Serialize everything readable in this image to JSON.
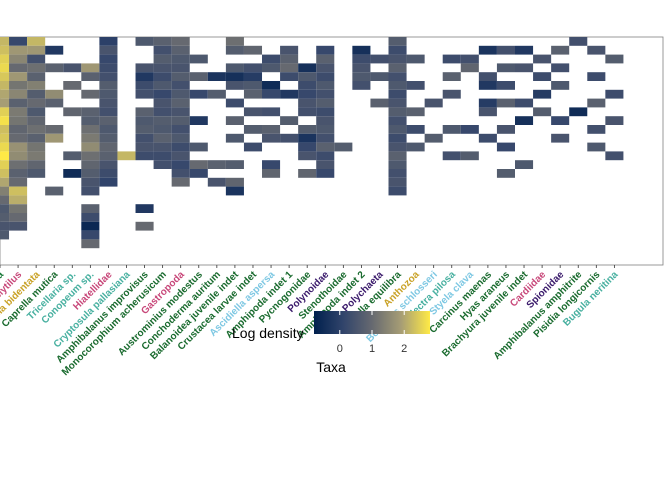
{
  "chart_data": {
    "type": "heatmap",
    "title": "",
    "xlabel": "Taxa",
    "ylabel": "",
    "legend": {
      "title": "Log density",
      "ticks": [
        0,
        1,
        2
      ],
      "range": [
        -0.8,
        2.8
      ],
      "colormap": "cividis",
      "placement": "bottom"
    },
    "grid": false,
    "rows": 26,
    "taxa": [
      {
        "name": "...ata",
        "color": "#1a7a3a"
      },
      {
        "name": "Mytilus",
        "color": "#c8487a"
      },
      {
        "name": "...lia bidentata",
        "color": "#c9a227"
      },
      {
        "name": "Caprella mutica",
        "color": "#1a6b2f"
      },
      {
        "name": "Tricellaria sp.",
        "color": "#48b0a0"
      },
      {
        "name": "Conopeum sp.",
        "color": "#48b0a0"
      },
      {
        "name": "Hiatellidae",
        "color": "#c8487a"
      },
      {
        "name": "Cryptosula pallasiana",
        "color": "#48b0a0"
      },
      {
        "name": "Amphibalanus improvisus",
        "color": "#1a6b2f"
      },
      {
        "name": "Monocorophium acherusicum",
        "color": "#1a6b2f"
      },
      {
        "name": "Gastropoda",
        "color": "#c8487a"
      },
      {
        "name": "Austrominius modestus",
        "color": "#1a6b2f"
      },
      {
        "name": "Conchoderma auritum",
        "color": "#1a6b2f"
      },
      {
        "name": "Balanoidea juvenile indet",
        "color": "#1a6b2f"
      },
      {
        "name": "Crustacea larvae indet",
        "color": "#1a6b2f"
      },
      {
        "name": "Ascidiella aspersa",
        "color": "#7ec8e3"
      },
      {
        "name": "Amphipoda indet 1",
        "color": "#1a6b2f"
      },
      {
        "name": "Pycnogonidae",
        "color": "#1a6b2f"
      },
      {
        "name": "Polynoidae",
        "color": "#3a1a6b"
      },
      {
        "name": "Stenothoidae",
        "color": "#1a6b2f"
      },
      {
        "name": "Amphipoda indet 2",
        "color": "#1a6b2f"
      },
      {
        "name": "Polychaeta",
        "color": "#3a1a6b"
      },
      {
        "name": "Caprella equilibra",
        "color": "#1a6b2f"
      },
      {
        "name": "Anthozoa",
        "color": "#c9a227"
      },
      {
        "name": "Botryllus schlosseri",
        "color": "#7ec8e3"
      },
      {
        "name": "Electra pilosa",
        "color": "#48b0a0"
      },
      {
        "name": "Styela clava",
        "color": "#7ec8e3"
      },
      {
        "name": "Carcinus maenas",
        "color": "#1a6b2f"
      },
      {
        "name": "Hyas araneus",
        "color": "#1a6b2f"
      },
      {
        "name": "Brachyura juvenile indet",
        "color": "#1a6b2f"
      },
      {
        "name": "Cardiidae",
        "color": "#c8487a"
      },
      {
        "name": "Spionidae",
        "color": "#3a1a6b"
      },
      {
        "name": "Amphibalanus amphitrite",
        "color": "#1a6b2f"
      },
      {
        "name": "Pisidia longicornis",
        "color": "#1a6b2f"
      },
      {
        "name": "Bugula neritina",
        "color": "#48b0a0"
      }
    ],
    "cells": [
      [
        0,
        0,
        2.2
      ],
      [
        0,
        1,
        2.3
      ],
      [
        0,
        2,
        2.5
      ],
      [
        0,
        3,
        2.6
      ],
      [
        0,
        4,
        2.4
      ],
      [
        0,
        5,
        2.2
      ],
      [
        0,
        6,
        2.0
      ],
      [
        0,
        7,
        1.9
      ],
      [
        0,
        8,
        2.5
      ],
      [
        0,
        9,
        2.7
      ],
      [
        0,
        10,
        2.3
      ],
      [
        0,
        11,
        2.4
      ],
      [
        0,
        12,
        2.6
      ],
      [
        0,
        13,
        2.8
      ],
      [
        0,
        14,
        2.5
      ],
      [
        0,
        15,
        2.3
      ],
      [
        0,
        16,
        2.0
      ],
      [
        0,
        17,
        1.4
      ],
      [
        0,
        18,
        1.0
      ],
      [
        0,
        19,
        0.6
      ],
      [
        0,
        20,
        0.7
      ],
      [
        0,
        21,
        0.5
      ],
      [
        0,
        22,
        0.6
      ],
      [
        1,
        0,
        0.2
      ],
      [
        1,
        1,
        1.8
      ],
      [
        1,
        2,
        1.5
      ],
      [
        1,
        3,
        1.0
      ],
      [
        1,
        4,
        1.8
      ],
      [
        1,
        5,
        1.2
      ],
      [
        1,
        6,
        1.5
      ],
      [
        1,
        7,
        0.8
      ],
      [
        1,
        8,
        1.3
      ],
      [
        1,
        9,
        1.2
      ],
      [
        1,
        10,
        0.9
      ],
      [
        1,
        11,
        1.0
      ],
      [
        1,
        12,
        1.7
      ],
      [
        1,
        13,
        1.6
      ],
      [
        1,
        14,
        1.1
      ],
      [
        1,
        15,
        0.8
      ],
      [
        1,
        16,
        1.0
      ],
      [
        1,
        17,
        2.3
      ],
      [
        1,
        18,
        2.1
      ],
      [
        1,
        19,
        1.2
      ],
      [
        1,
        20,
        1.0
      ],
      [
        1,
        21,
        0.5
      ],
      [
        2,
        0,
        2.2
      ],
      [
        2,
        1,
        1.8
      ],
      [
        2,
        2,
        0.4
      ],
      [
        2,
        3,
        1.1
      ],
      [
        2,
        4,
        0.8
      ],
      [
        2,
        5,
        1.4
      ],
      [
        2,
        6,
        0.7
      ],
      [
        2,
        7,
        1.0
      ],
      [
        2,
        8,
        0.6
      ],
      [
        2,
        9,
        0.9
      ],
      [
        2,
        10,
        1.1
      ],
      [
        2,
        11,
        0.8
      ],
      [
        2,
        12,
        1.2
      ],
      [
        2,
        13,
        1.3
      ],
      [
        2,
        14,
        0.9
      ],
      [
        2,
        15,
        0.6
      ],
      [
        3,
        1,
        -0.2
      ],
      [
        3,
        3,
        0.8
      ],
      [
        3,
        6,
        1.6
      ],
      [
        3,
        7,
        0.8
      ],
      [
        3,
        10,
        1.0
      ],
      [
        3,
        11,
        1.8
      ],
      [
        3,
        17,
        0.8
      ],
      [
        4,
        3,
        0.5
      ],
      [
        4,
        5,
        1.0
      ],
      [
        4,
        8,
        0.9
      ],
      [
        4,
        13,
        0.7
      ],
      [
        4,
        15,
        -0.5
      ],
      [
        5,
        3,
        1.8
      ],
      [
        5,
        4,
        0.8
      ],
      [
        5,
        6,
        1.0
      ],
      [
        5,
        8,
        0.8
      ],
      [
        5,
        9,
        0.7
      ],
      [
        5,
        10,
        1.1
      ],
      [
        5,
        11,
        1.3
      ],
      [
        5,
        12,
        1.6
      ],
      [
        5,
        13,
        1.1
      ],
      [
        5,
        14,
        0.9
      ],
      [
        5,
        15,
        0.7
      ],
      [
        5,
        16,
        0.5
      ],
      [
        5,
        17,
        0.4
      ],
      [
        5,
        19,
        0.8
      ],
      [
        5,
        20,
        0.3
      ],
      [
        5,
        21,
        -0.6
      ],
      [
        5,
        22,
        0.2
      ],
      [
        5,
        23,
        1.0
      ],
      [
        6,
        0,
        0.0
      ],
      [
        6,
        1,
        0.5
      ],
      [
        6,
        2,
        0.2
      ],
      [
        6,
        3,
        0.3
      ],
      [
        6,
        4,
        0.4
      ],
      [
        6,
        5,
        0.7
      ],
      [
        6,
        6,
        0.6
      ],
      [
        6,
        7,
        0.5
      ],
      [
        6,
        8,
        0.4
      ],
      [
        6,
        9,
        0.8
      ],
      [
        6,
        10,
        0.6
      ],
      [
        6,
        11,
        0.7
      ],
      [
        6,
        12,
        0.9
      ],
      [
        6,
        13,
        0.8
      ],
      [
        6,
        14,
        0.5
      ],
      [
        6,
        15,
        0.3
      ],
      [
        6,
        16,
        0.1
      ],
      [
        7,
        13,
        2.2
      ],
      [
        8,
        0,
        0.6
      ],
      [
        8,
        3,
        0.5
      ],
      [
        8,
        4,
        -0.2
      ],
      [
        8,
        5,
        0.3
      ],
      [
        8,
        6,
        0.4
      ],
      [
        8,
        8,
        0.8
      ],
      [
        8,
        9,
        0.6
      ],
      [
        8,
        10,
        0.7
      ],
      [
        8,
        11,
        0.4
      ],
      [
        8,
        12,
        0.5
      ],
      [
        8,
        13,
        0.3
      ],
      [
        8,
        19,
        -0.2
      ],
      [
        8,
        21,
        1.0
      ],
      [
        9,
        0,
        0.8
      ],
      [
        9,
        1,
        0.4
      ],
      [
        9,
        2,
        0.7
      ],
      [
        9,
        3,
        0.5
      ],
      [
        9,
        4,
        0.3
      ],
      [
        9,
        5,
        0.6
      ],
      [
        9,
        6,
        0.2
      ],
      [
        9,
        7,
        0.5
      ],
      [
        9,
        8,
        0.4
      ],
      [
        9,
        9,
        0.7
      ],
      [
        9,
        10,
        0.6
      ],
      [
        9,
        11,
        0.8
      ],
      [
        9,
        12,
        0.5
      ],
      [
        9,
        13,
        0.3
      ],
      [
        9,
        14,
        0.4
      ],
      [
        10,
        0,
        1.0
      ],
      [
        10,
        1,
        0.8
      ],
      [
        10,
        2,
        0.6
      ],
      [
        10,
        3,
        0.5
      ],
      [
        10,
        4,
        0.7
      ],
      [
        10,
        5,
        0.4
      ],
      [
        10,
        6,
        0.6
      ],
      [
        10,
        7,
        0.8
      ],
      [
        10,
        8,
        0.5
      ],
      [
        10,
        9,
        0.7
      ],
      [
        10,
        10,
        0.4
      ],
      [
        10,
        11,
        0.6
      ],
      [
        10,
        12,
        0.3
      ],
      [
        10,
        13,
        0.5
      ],
      [
        10,
        14,
        0.2
      ],
      [
        10,
        15,
        0.4
      ],
      [
        10,
        16,
        1.0
      ],
      [
        11,
        2,
        0.6
      ],
      [
        11,
        4,
        0.8
      ],
      [
        11,
        6,
        0.2
      ],
      [
        11,
        9,
        -0.2
      ],
      [
        11,
        12,
        0.6
      ],
      [
        11,
        14,
        1.0
      ],
      [
        11,
        15,
        0.2
      ],
      [
        12,
        4,
        -0.3
      ],
      [
        12,
        6,
        0.7
      ],
      [
        12,
        14,
        0.8
      ],
      [
        12,
        16,
        0.5
      ],
      [
        13,
        0,
        1.1
      ],
      [
        13,
        1,
        0.7
      ],
      [
        13,
        3,
        0.6
      ],
      [
        13,
        4,
        -0.4
      ],
      [
        13,
        5,
        0.5
      ],
      [
        13,
        7,
        0.3
      ],
      [
        13,
        9,
        0.8
      ],
      [
        13,
        11,
        0.6
      ],
      [
        13,
        14,
        0.7
      ],
      [
        13,
        16,
        0.9
      ],
      [
        13,
        17,
        -0.3
      ],
      [
        14,
        1,
        0.9
      ],
      [
        14,
        3,
        0.4
      ],
      [
        14,
        4,
        -0.1
      ],
      [
        14,
        5,
        0.6
      ],
      [
        14,
        6,
        0.8
      ],
      [
        14,
        8,
        0.5
      ],
      [
        14,
        10,
        0.7
      ],
      [
        14,
        12,
        0.3
      ],
      [
        15,
        2,
        0.3
      ],
      [
        15,
        3,
        0.6
      ],
      [
        15,
        5,
        -0.5
      ],
      [
        15,
        6,
        0.2
      ],
      [
        15,
        8,
        0.4
      ],
      [
        15,
        10,
        0.8
      ],
      [
        15,
        11,
        0.5
      ],
      [
        15,
        14,
        0.2
      ],
      [
        15,
        15,
        0.9
      ],
      [
        16,
        1,
        0.5
      ],
      [
        16,
        2,
        0.8
      ],
      [
        16,
        3,
        1.0
      ],
      [
        16,
        4,
        0.3
      ],
      [
        16,
        6,
        -0.2
      ],
      [
        16,
        9,
        0.7
      ],
      [
        16,
        11,
        0.4
      ],
      [
        17,
        3,
        -0.4
      ],
      [
        17,
        4,
        0.6
      ],
      [
        17,
        5,
        0.3
      ],
      [
        17,
        6,
        0.2
      ],
      [
        17,
        7,
        0.5
      ],
      [
        17,
        8,
        0.4
      ],
      [
        17,
        10,
        0.7
      ],
      [
        17,
        11,
        -0.3
      ],
      [
        17,
        12,
        0.2
      ],
      [
        17,
        13,
        0.5
      ],
      [
        17,
        15,
        0.9
      ],
      [
        18,
        1,
        0.2
      ],
      [
        18,
        2,
        0.8
      ],
      [
        18,
        3,
        0.5
      ],
      [
        18,
        4,
        0.3
      ],
      [
        18,
        5,
        0.6
      ],
      [
        18,
        6,
        0.4
      ],
      [
        18,
        7,
        0.7
      ],
      [
        18,
        8,
        0.3
      ],
      [
        18,
        9,
        0.5
      ],
      [
        18,
        10,
        0.6
      ],
      [
        18,
        11,
        0.4
      ],
      [
        18,
        12,
        0.8
      ],
      [
        18,
        13,
        0.3
      ],
      [
        18,
        14,
        0.5
      ],
      [
        18,
        15,
        0.2
      ],
      [
        19,
        12,
        0.7
      ],
      [
        20,
        1,
        -0.4
      ],
      [
        20,
        2,
        0.3
      ],
      [
        20,
        3,
        0.5
      ],
      [
        20,
        4,
        0.6
      ],
      [
        20,
        5,
        0.4
      ],
      [
        21,
        2,
        0.4
      ],
      [
        21,
        4,
        0.6
      ],
      [
        21,
        7,
        0.8
      ],
      [
        22,
        0,
        0.7
      ],
      [
        22,
        1,
        0.3
      ],
      [
        22,
        2,
        0.5
      ],
      [
        22,
        3,
        0.8
      ],
      [
        22,
        4,
        0.4
      ],
      [
        22,
        5,
        0.6
      ],
      [
        22,
        6,
        0.3
      ],
      [
        22,
        7,
        0.5
      ],
      [
        22,
        8,
        0.7
      ],
      [
        22,
        9,
        0.4
      ],
      [
        22,
        10,
        0.6
      ],
      [
        22,
        11,
        0.3
      ],
      [
        22,
        12,
        0.5
      ],
      [
        22,
        13,
        0.8
      ],
      [
        22,
        14,
        0.6
      ],
      [
        22,
        15,
        0.4
      ],
      [
        22,
        16,
        0.5
      ],
      [
        22,
        17,
        0.3
      ],
      [
        23,
        2,
        0.6
      ],
      [
        23,
        5,
        0.4
      ],
      [
        23,
        8,
        0.8
      ],
      [
        23,
        10,
        0.3
      ],
      [
        23,
        12,
        0.6
      ],
      [
        24,
        7,
        0.5
      ],
      [
        24,
        11,
        0.7
      ],
      [
        25,
        2,
        0.3
      ],
      [
        25,
        4,
        0.8
      ],
      [
        25,
        6,
        0.5
      ],
      [
        25,
        10,
        0.6
      ],
      [
        25,
        13,
        0.4
      ],
      [
        26,
        2,
        0.4
      ],
      [
        26,
        3,
        0.9
      ],
      [
        26,
        10,
        0.2
      ],
      [
        26,
        13,
        0.7
      ],
      [
        27,
        1,
        -0.3
      ],
      [
        27,
        4,
        0.4
      ],
      [
        27,
        5,
        -0.2
      ],
      [
        27,
        7,
        -0.1
      ],
      [
        27,
        8,
        0.5
      ],
      [
        27,
        11,
        0.3
      ],
      [
        28,
        1,
        0.4
      ],
      [
        28,
        3,
        0.6
      ],
      [
        28,
        5,
        0.3
      ],
      [
        28,
        7,
        0.8
      ],
      [
        28,
        10,
        0.5
      ],
      [
        28,
        12,
        0.2
      ],
      [
        28,
        15,
        0.7
      ],
      [
        29,
        1,
        -0.2
      ],
      [
        29,
        3,
        0.5
      ],
      [
        29,
        7,
        0.3
      ],
      [
        29,
        9,
        -0.4
      ],
      [
        29,
        14,
        0.6
      ],
      [
        30,
        2,
        0.5
      ],
      [
        30,
        4,
        0.3
      ],
      [
        30,
        6,
        -0.1
      ],
      [
        30,
        8,
        0.7
      ],
      [
        31,
        1,
        0.8
      ],
      [
        31,
        3,
        0.4
      ],
      [
        31,
        5,
        0.6
      ],
      [
        31,
        9,
        0.2
      ],
      [
        31,
        11,
        0.5
      ],
      [
        32,
        0,
        0.4
      ],
      [
        32,
        8,
        -0.5
      ],
      [
        33,
        1,
        0.5
      ],
      [
        33,
        4,
        0.3
      ],
      [
        33,
        7,
        0.8
      ],
      [
        33,
        10,
        0.4
      ],
      [
        33,
        12,
        0.6
      ],
      [
        34,
        2,
        0.7
      ],
      [
        34,
        6,
        0.3
      ],
      [
        34,
        9,
        0.5
      ],
      [
        34,
        13,
        0.4
      ]
    ]
  }
}
